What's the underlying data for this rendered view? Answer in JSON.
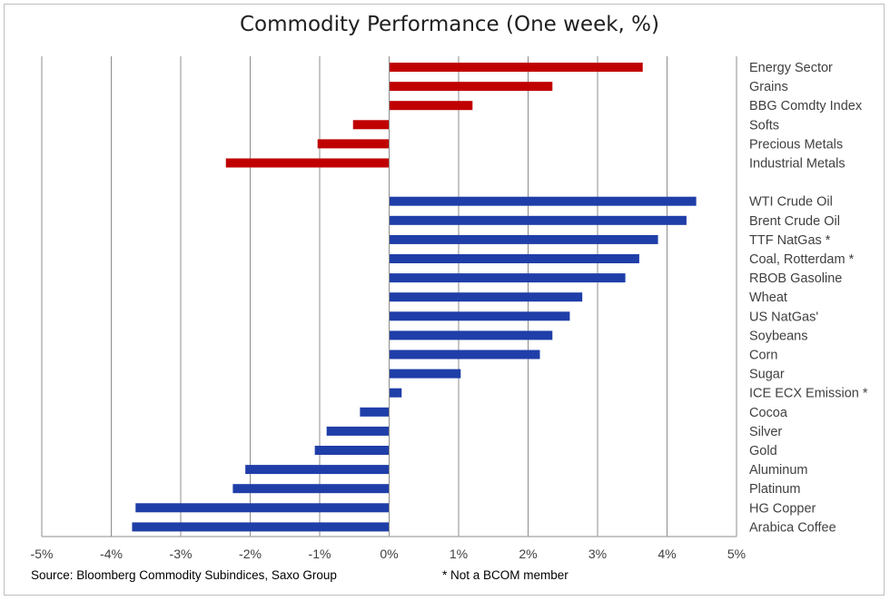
{
  "chart_data": {
    "type": "bar",
    "orientation": "horizontal",
    "title": "Commodity Performance (One week, %)",
    "xlim": [
      -5,
      5
    ],
    "x_ticks": [
      "-5%",
      "-4%",
      "-3%",
      "-2%",
      "-1%",
      "0%",
      "1%",
      "2%",
      "3%",
      "4%",
      "5%"
    ],
    "grid": "vertical",
    "groups": [
      {
        "color": "#c00000",
        "items": [
          {
            "label": "Energy Sector",
            "value": 3.65
          },
          {
            "label": "Grains",
            "value": 2.35
          },
          {
            "label": "BBG Comdty Index",
            "value": 1.2
          },
          {
            "label": "Softs",
            "value": -0.52
          },
          {
            "label": "Precious Metals",
            "value": -1.03
          },
          {
            "label": "Industrial Metals",
            "value": -2.35
          }
        ]
      },
      {
        "color": "#1f3ea8",
        "items": [
          {
            "label": "WTI Crude Oil",
            "value": 4.42
          },
          {
            "label": "Brent Crude Oil",
            "value": 4.28
          },
          {
            "label": "TTF NatGas *",
            "value": 3.87
          },
          {
            "label": "Coal, Rotterdam *",
            "value": 3.6
          },
          {
            "label": "RBOB Gasoline",
            "value": 3.4
          },
          {
            "label": "Wheat",
            "value": 2.78
          },
          {
            "label": "US NatGas'",
            "value": 2.6
          },
          {
            "label": "Soybeans",
            "value": 2.35
          },
          {
            "label": "Corn",
            "value": 2.17
          },
          {
            "label": "Sugar",
            "value": 1.03
          },
          {
            "label": "ICE ECX Emission *",
            "value": 0.18
          },
          {
            "label": "Cocoa",
            "value": -0.42
          },
          {
            "label": "Silver",
            "value": -0.9
          },
          {
            "label": "Gold",
            "value": -1.07
          },
          {
            "label": "Aluminum",
            "value": -2.07
          },
          {
            "label": "Platinum",
            "value": -2.25
          },
          {
            "label": "HG Copper",
            "value": -3.65
          },
          {
            "label": "Arabica Coffee",
            "value": -3.7
          }
        ]
      }
    ]
  },
  "footer": {
    "source": "Source: Bloomberg Commodity Subindices, Saxo Group",
    "note": "* Not a BCOM member"
  }
}
